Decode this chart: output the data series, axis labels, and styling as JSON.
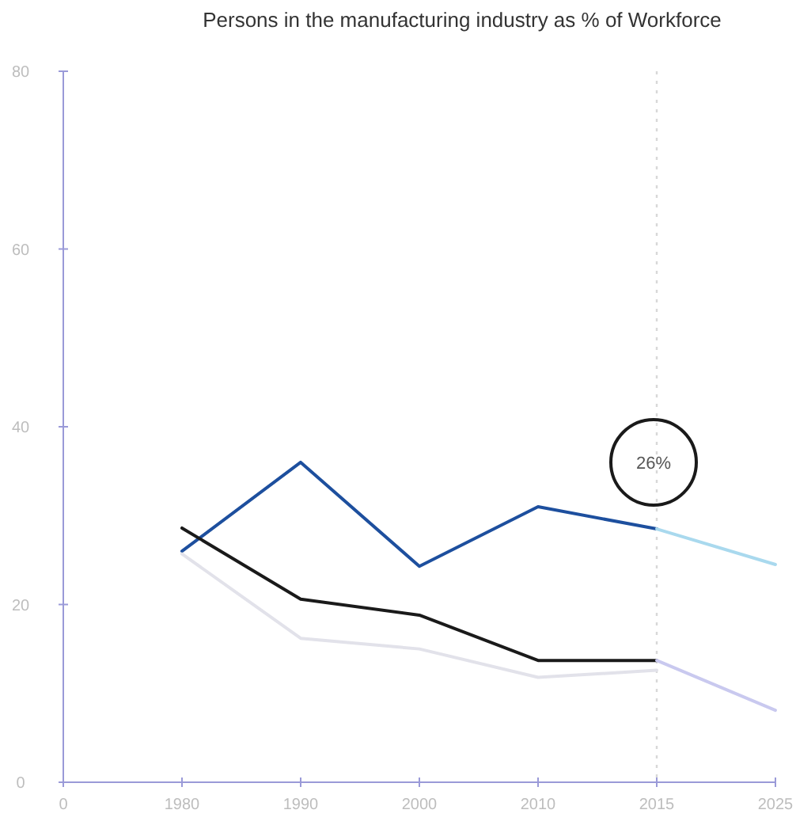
{
  "chart_data": {
    "type": "line",
    "title": "Persons in the manufacturing industry as % of Workforce",
    "categories": [
      "0",
      "1980",
      "1990",
      "2000",
      "2010",
      "2015",
      "2025"
    ],
    "series": [
      {
        "color": "#1d4f9e",
        "values": [
          null,
          26,
          36,
          24.3,
          31,
          28.5,
          null
        ]
      },
      {
        "color": "#1a1a1a",
        "values": [
          null,
          28.6,
          20.6,
          18.8,
          13.7,
          13.7,
          null
        ]
      },
      {
        "color": "#e2e2ea",
        "values": [
          null,
          25.7,
          16.2,
          15,
          11.8,
          12.6,
          null
        ]
      },
      {
        "color": "#a9d9ee",
        "values": [
          null,
          null,
          null,
          null,
          null,
          28.5,
          24.5
        ]
      },
      {
        "color": "#c9c9ef",
        "values": [
          null,
          null,
          null,
          null,
          null,
          13.7,
          8.1
        ]
      }
    ],
    "ylim": [
      0,
      80
    ],
    "yticks": [
      0,
      20,
      40,
      60,
      80
    ],
    "ref_lines": [
      {
        "axis": "x",
        "value": "2015",
        "color": "#d8d8d8",
        "line_style": "dotted"
      }
    ],
    "annotations": [
      {
        "text": "26%",
        "x": "2015",
        "y": 36
      }
    ]
  }
}
